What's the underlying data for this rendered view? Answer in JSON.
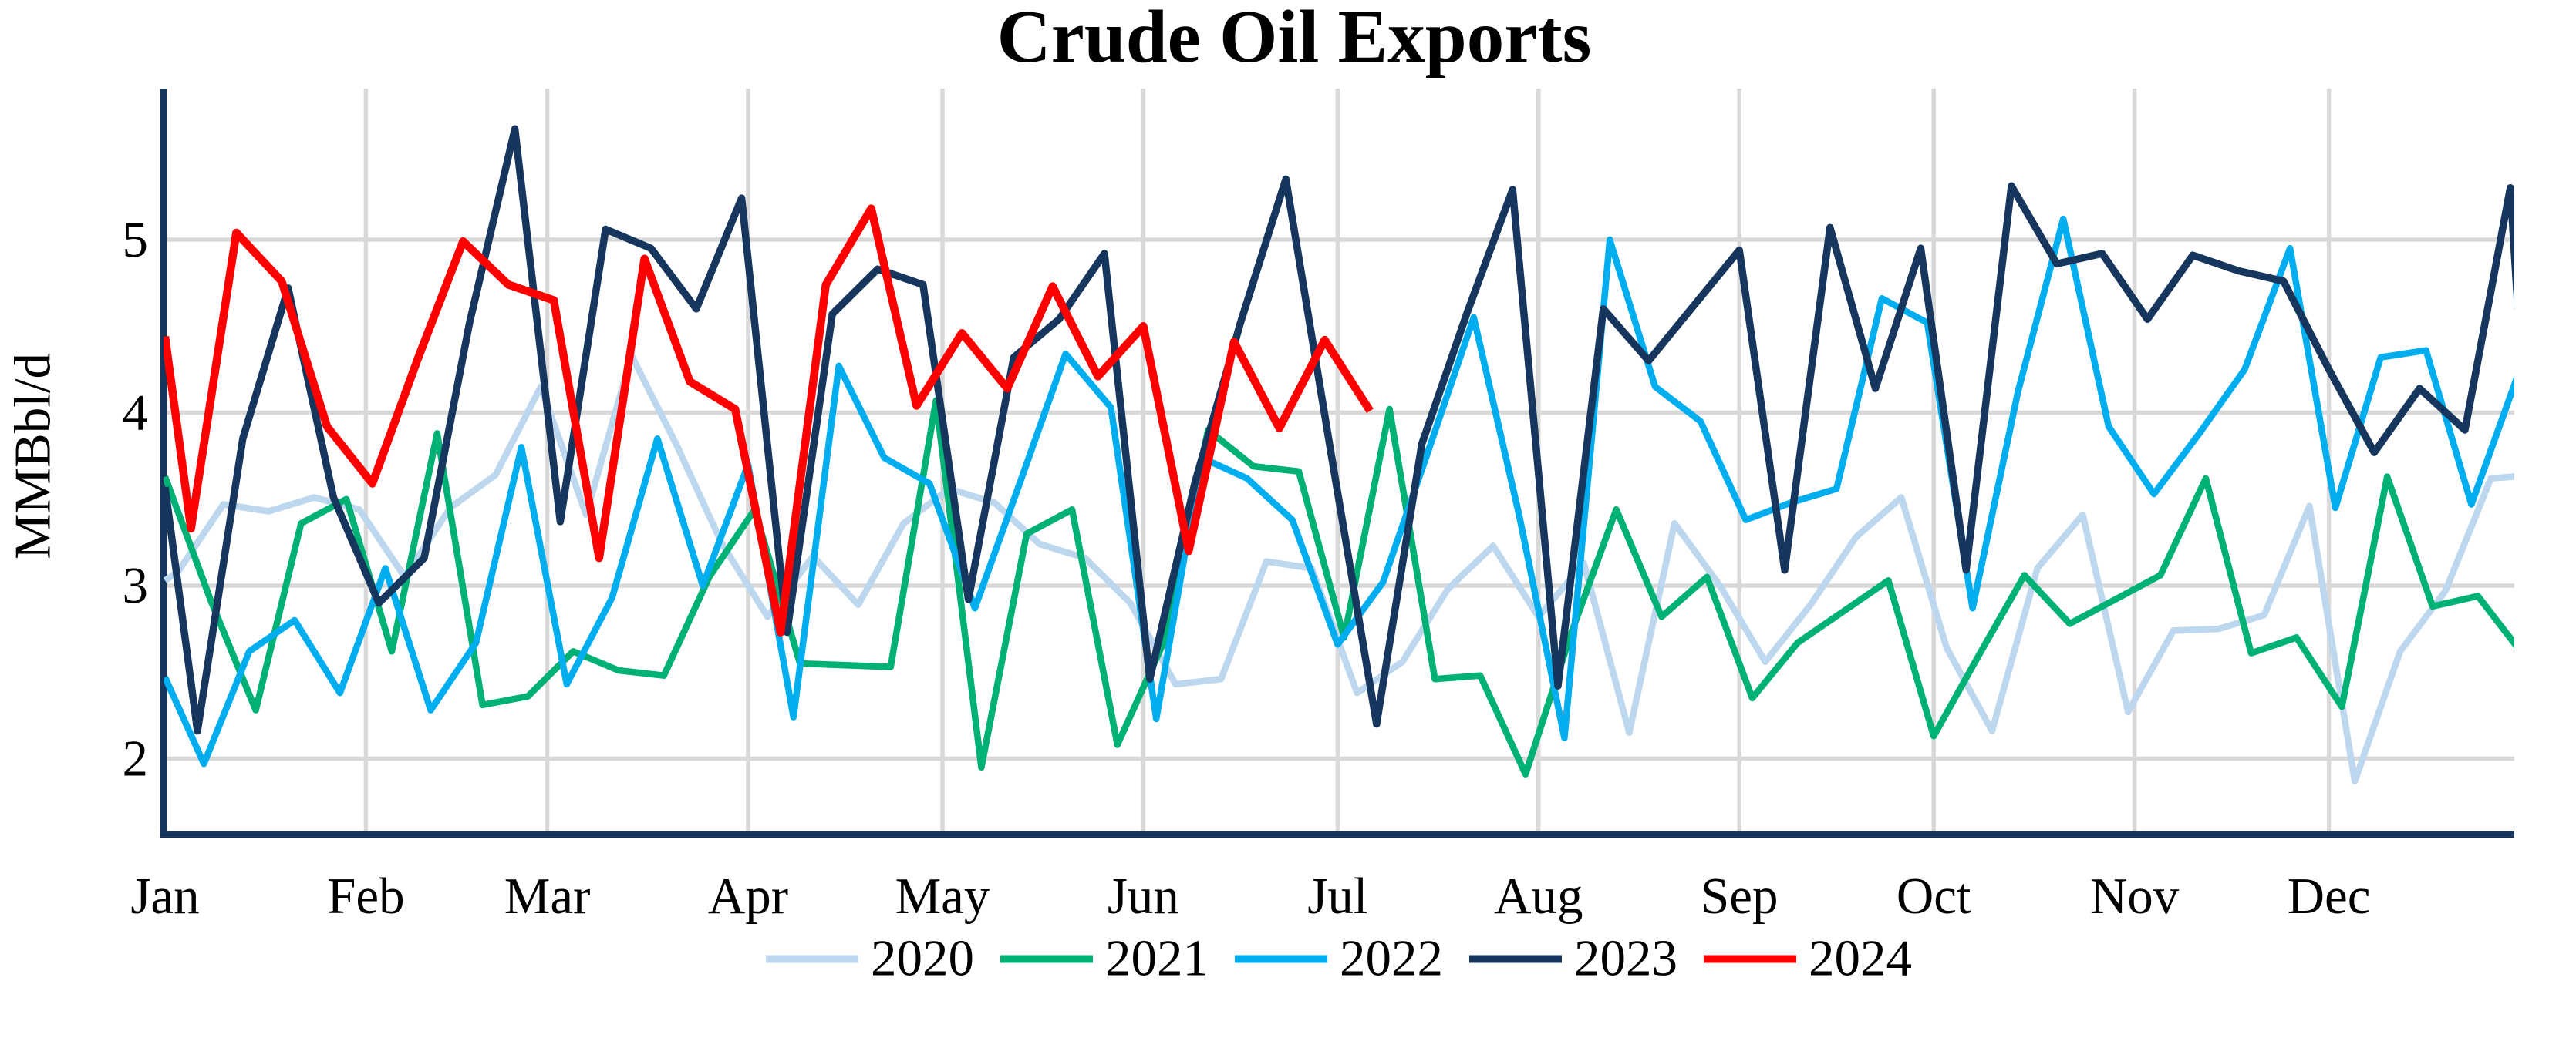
{
  "title": "Crude Oil Exports",
  "y_axis": {
    "label": "MMBbl/d",
    "tick_labels": [
      "5",
      "4",
      "3",
      "2"
    ],
    "tick_values": [
      5,
      4,
      3,
      2
    ]
  },
  "x_axis": {
    "month_labels": [
      "Jan",
      "Feb",
      "Mar",
      "Apr",
      "May",
      "Jun",
      "Jul",
      "Aug",
      "Sep",
      "Oct",
      "Nov",
      "Dec"
    ]
  },
  "legend": {
    "items": [
      {
        "label": "2020",
        "color": "#BDD7EE"
      },
      {
        "label": "2021",
        "color": "#00B176"
      },
      {
        "label": "2022",
        "color": "#00AEEF"
      },
      {
        "label": "2023",
        "color": "#17365D"
      },
      {
        "label": "2024",
        "color": "#FE0000"
      }
    ]
  },
  "chart_data": {
    "type": "line",
    "title": "Crude Oil Exports",
    "xlabel": "",
    "ylabel": "MMBbl/d",
    "x_unit": "day of year (weekly data, months Jan-Dec)",
    "ylim": [
      1.55,
      5.85
    ],
    "yticks": [
      2,
      3,
      4,
      5
    ],
    "grid": true,
    "legend_position": "bottom",
    "month_start_days": [
      0,
      31,
      59,
      90,
      120,
      151,
      181,
      212,
      243,
      273,
      304,
      334
    ],
    "series": [
      {
        "name": "2020",
        "color": "#BDD7EE",
        "x_days": [
          0,
          2,
          9,
          16,
          23,
          30,
          37,
          44,
          51,
          58,
          65,
          72,
          79,
          86,
          93,
          100,
          107,
          114,
          121,
          128,
          135,
          142,
          149,
          156,
          163,
          170,
          177,
          184,
          191,
          198,
          205,
          212,
          219,
          226,
          233,
          240,
          247,
          254,
          261,
          268,
          275,
          282,
          289,
          296,
          303,
          310,
          317,
          324,
          331,
          338,
          345,
          352,
          359,
          366
        ],
        "values": [
          3.03,
          3.08,
          3.47,
          3.43,
          3.51,
          3.44,
          3.05,
          3.45,
          3.64,
          4.15,
          3.41,
          4.33,
          3.81,
          3.24,
          2.82,
          3.17,
          2.89,
          3.36,
          3.56,
          3.48,
          3.24,
          3.16,
          2.9,
          2.43,
          2.46,
          3.14,
          3.1,
          2.38,
          2.56,
          2.98,
          3.23,
          2.82,
          3.13,
          2.15,
          3.36,
          3.0,
          2.56,
          2.89,
          3.28,
          3.51,
          2.64,
          2.16,
          3.1,
          3.41,
          2.27,
          2.74,
          2.75,
          2.83,
          3.46,
          1.87,
          2.62,
          2.97,
          3.62,
          3.64
        ]
      },
      {
        "name": "2021",
        "color": "#00B176",
        "x_days": [
          0,
          7,
          14,
          21,
          28,
          35,
          42,
          49,
          56,
          63,
          70,
          77,
          84,
          91,
          98,
          105,
          112,
          119,
          126,
          133,
          140,
          147,
          154,
          161,
          168,
          175,
          182,
          189,
          196,
          203,
          210,
          217,
          224,
          231,
          238,
          245,
          252,
          259,
          266,
          273,
          280,
          287,
          294,
          301,
          308,
          315,
          322,
          329,
          336,
          343,
          350,
          357,
          364
        ],
        "values": [
          3.63,
          2.92,
          2.28,
          3.36,
          3.5,
          2.62,
          3.88,
          2.31,
          2.36,
          2.62,
          2.51,
          2.48,
          3.05,
          3.44,
          2.55,
          2.54,
          2.53,
          4.07,
          1.95,
          3.3,
          3.44,
          2.08,
          2.66,
          3.9,
          3.69,
          3.66,
          2.7,
          4.02,
          2.46,
          2.48,
          1.91,
          2.72,
          3.44,
          2.82,
          3.05,
          2.35,
          2.67,
          2.85,
          3.03,
          2.13,
          2.6,
          3.06,
          2.78,
          2.92,
          3.06,
          3.62,
          2.61,
          2.7,
          2.3,
          3.63,
          2.88,
          2.94,
          2.6
        ]
      },
      {
        "name": "2022",
        "color": "#00AEEF",
        "x_days": [
          0,
          6,
          13,
          20,
          27,
          34,
          41,
          48,
          55,
          62,
          69,
          76,
          83,
          90,
          97,
          104,
          111,
          118,
          125,
          132,
          139,
          146,
          153,
          160,
          167,
          174,
          181,
          188,
          195,
          202,
          209,
          216,
          223,
          230,
          237,
          244,
          251,
          258,
          265,
          272,
          279,
          286,
          293,
          300,
          307,
          314,
          321,
          328,
          335,
          342,
          349,
          356,
          363
        ],
        "values": [
          2.47,
          1.97,
          2.62,
          2.8,
          2.38,
          3.1,
          2.28,
          2.67,
          3.8,
          2.43,
          2.93,
          3.85,
          3.0,
          3.7,
          2.24,
          4.27,
          3.74,
          3.59,
          2.87,
          3.6,
          4.34,
          4.03,
          2.23,
          3.74,
          3.62,
          3.38,
          2.66,
          3.02,
          3.78,
          4.55,
          3.41,
          2.12,
          5.0,
          4.15,
          3.95,
          3.38,
          3.48,
          3.56,
          4.66,
          4.52,
          2.87,
          4.12,
          5.12,
          3.92,
          3.53,
          3.88,
          4.25,
          4.95,
          3.45,
          4.32,
          4.36,
          3.47,
          4.2
        ]
      },
      {
        "name": "2023",
        "color": "#17365D",
        "x_days": [
          0,
          5,
          12,
          19,
          26,
          33,
          40,
          47,
          54,
          61,
          68,
          75,
          82,
          89,
          96,
          103,
          110,
          117,
          124,
          131,
          138,
          145,
          152,
          159,
          166,
          173,
          180,
          187,
          194,
          201,
          208,
          215,
          222,
          229,
          236,
          243,
          250,
          257,
          264,
          271,
          278,
          285,
          292,
          299,
          306,
          313,
          320,
          327,
          334,
          341,
          348,
          355,
          362,
          364
        ],
        "values": [
          3.57,
          2.16,
          3.85,
          4.72,
          3.51,
          2.9,
          3.16,
          4.52,
          5.64,
          3.37,
          5.06,
          4.95,
          4.6,
          5.24,
          2.73,
          4.57,
          4.83,
          4.74,
          2.92,
          4.32,
          4.54,
          4.92,
          2.46,
          3.6,
          4.52,
          5.35,
          3.76,
          2.2,
          3.82,
          4.58,
          5.29,
          2.42,
          4.6,
          4.3,
          4.62,
          4.94,
          3.09,
          5.07,
          4.14,
          4.95,
          3.09,
          5.31,
          4.86,
          4.92,
          4.54,
          4.91,
          4.82,
          4.76,
          4.25,
          3.77,
          4.14,
          3.9,
          5.3,
          4.1
        ]
      },
      {
        "name": "2024",
        "color": "#FE0000",
        "x_days": [
          0,
          4,
          11,
          18,
          25,
          32,
          39,
          46,
          53,
          60,
          67,
          74,
          81,
          88,
          95,
          102,
          109,
          116,
          123,
          130,
          137,
          144,
          151,
          158,
          165,
          172,
          179,
          186
        ],
        "values": [
          4.44,
          3.33,
          5.04,
          4.76,
          3.92,
          3.59,
          4.31,
          4.99,
          4.74,
          4.65,
          3.16,
          4.89,
          4.18,
          4.02,
          2.73,
          4.74,
          5.18,
          4.04,
          4.46,
          4.14,
          4.73,
          4.21,
          4.5,
          3.2,
          4.41,
          3.91,
          4.42,
          4.01
        ]
      }
    ]
  },
  "style": {
    "grid_color": "#D9D9D9",
    "axis_color": "#17365D",
    "text_color": "#000000",
    "background": "#FFFFFF"
  }
}
